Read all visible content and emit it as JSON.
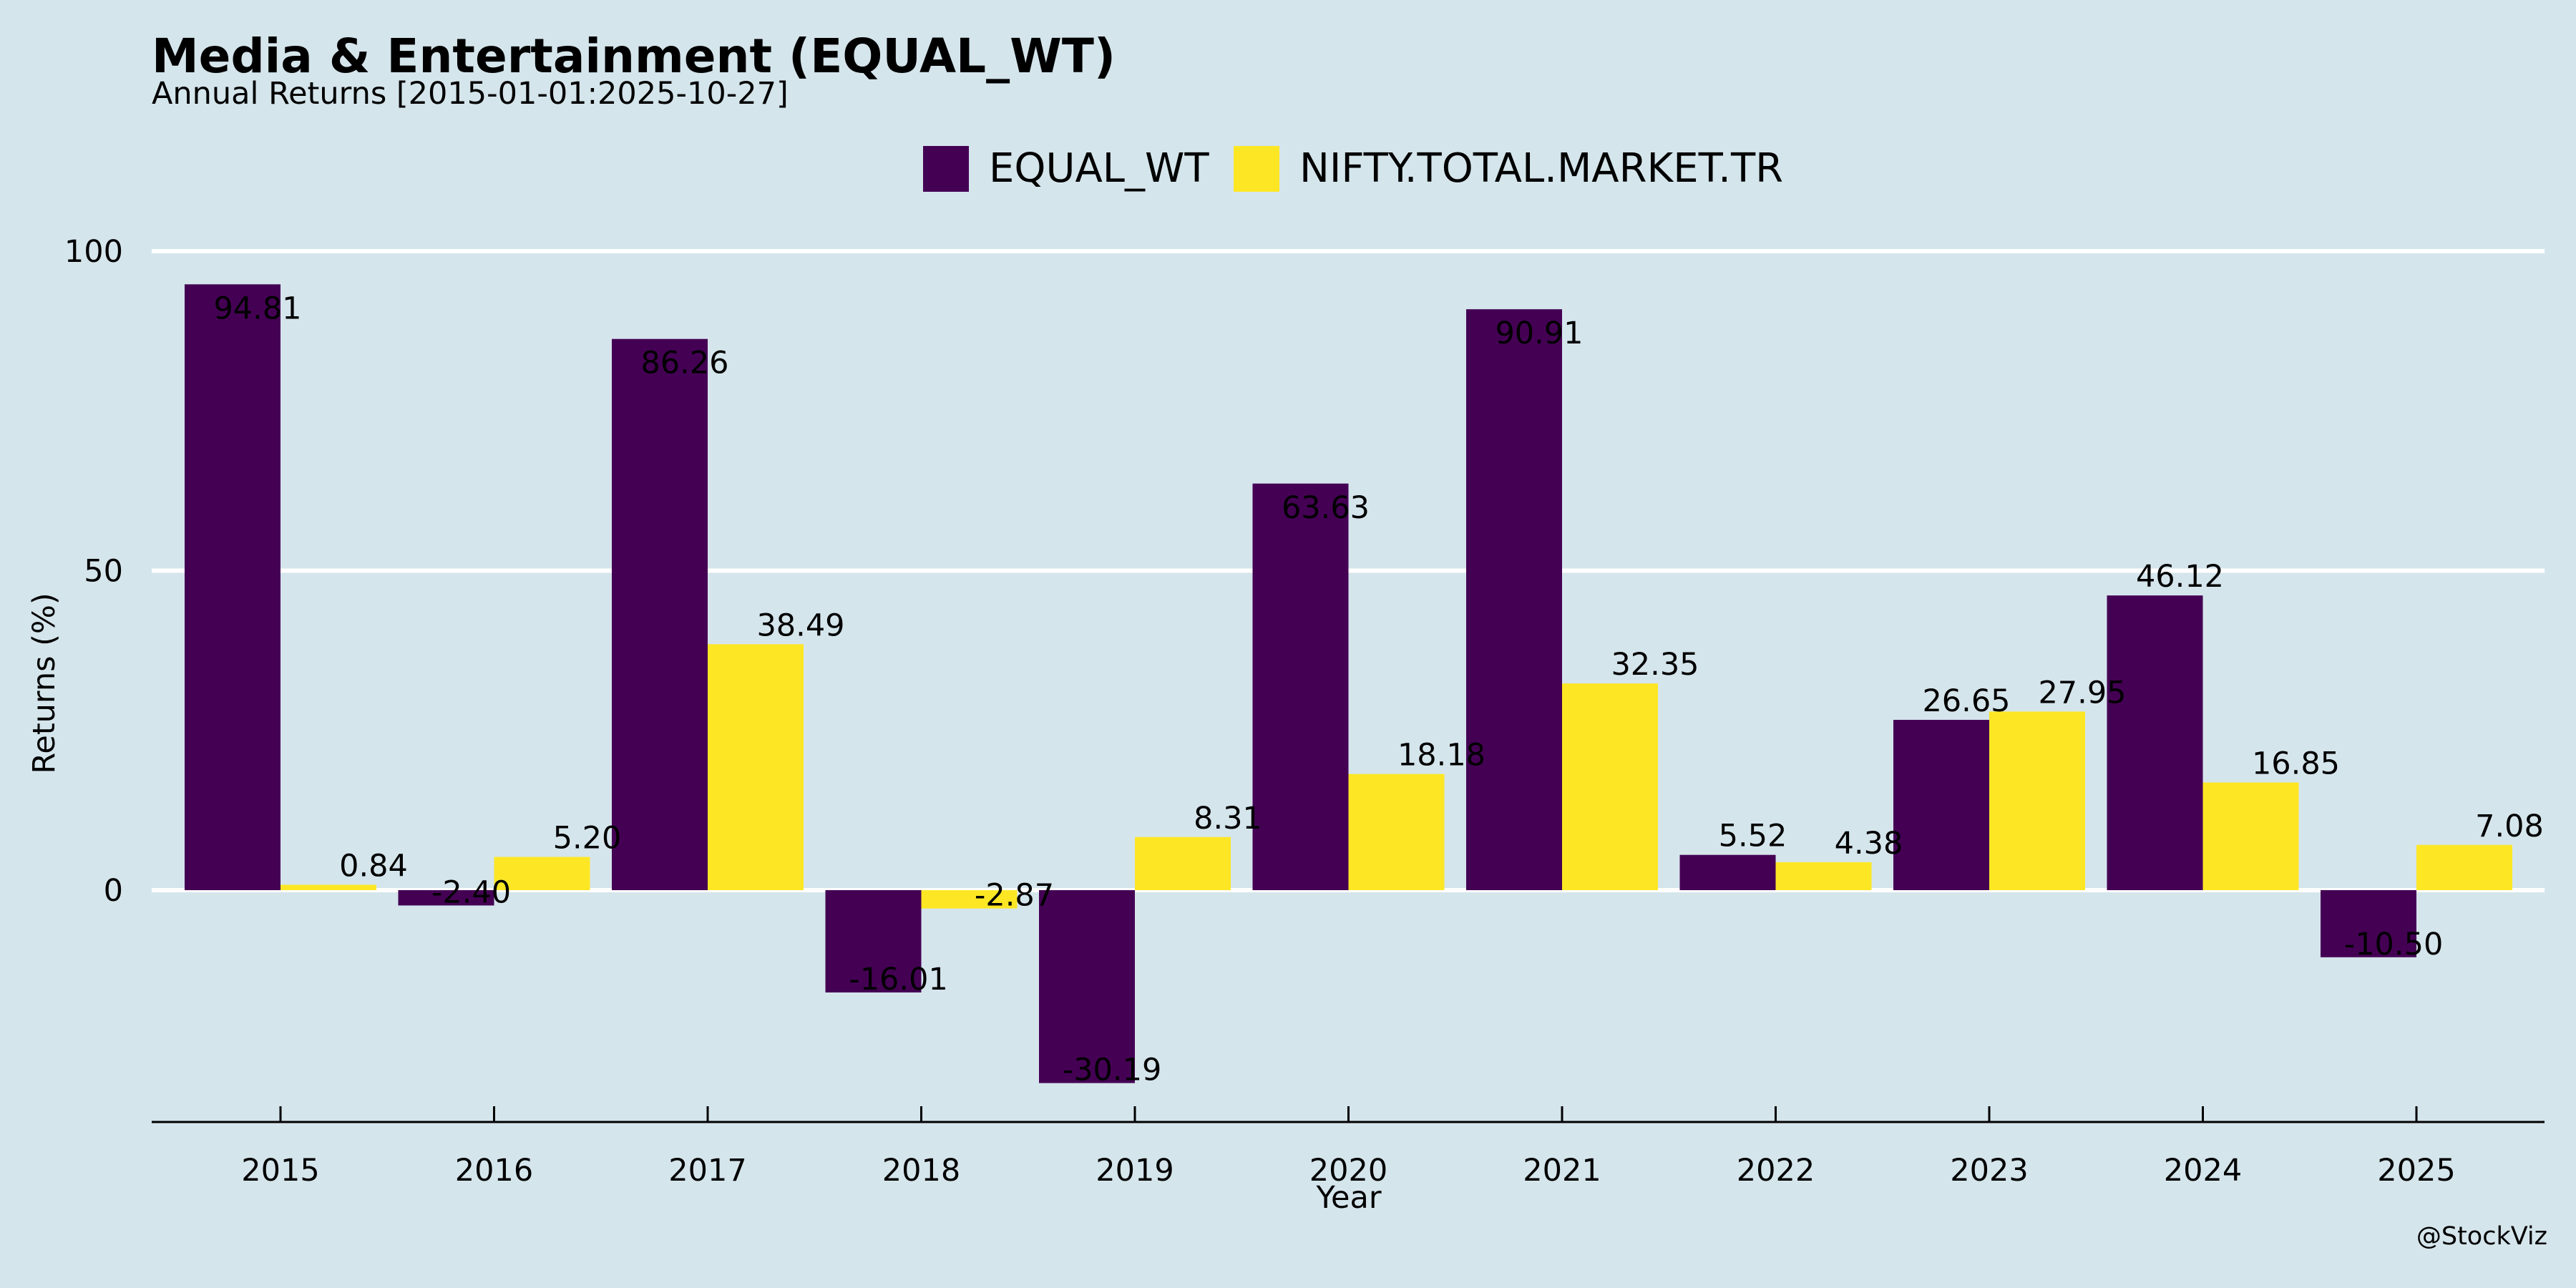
{
  "chart_data": {
    "type": "bar",
    "title": "Media & Entertainment (EQUAL_WT)",
    "subtitle": "Annual Returns [2015-01-01:2025-10-27]",
    "xlabel": "Year",
    "ylabel": "Returns (%)",
    "ylim": [
      -36.5,
      100
    ],
    "yticks": [
      0,
      50,
      100
    ],
    "ytick_labels": [
      "0",
      "50",
      "100"
    ],
    "grid": true,
    "legend_position": "top-center",
    "categories": [
      "2015",
      "2016",
      "2017",
      "2018",
      "2019",
      "2020",
      "2021",
      "2022",
      "2023",
      "2024",
      "2025"
    ],
    "series": [
      {
        "name": "EQUAL_WT",
        "color": "#440154",
        "values": [
          94.81,
          -2.4,
          86.26,
          -16.01,
          -30.19,
          63.63,
          90.91,
          5.52,
          26.65,
          46.12,
          -10.5
        ],
        "labels": [
          "94.81",
          "-2.40",
          "86.26",
          "-16.01",
          "-30.19",
          "63.63",
          "90.91",
          "5.52",
          "26.65",
          "46.12",
          "-10.50"
        ]
      },
      {
        "name": "NIFTY.TOTAL.MARKET.TR",
        "color": "#fde725",
        "values": [
          0.84,
          5.2,
          38.49,
          -2.87,
          8.31,
          18.18,
          32.35,
          4.38,
          27.95,
          16.85,
          7.08
        ],
        "labels": [
          "0.84",
          "5.20",
          "38.49",
          "-2.87",
          "8.31",
          "18.18",
          "32.35",
          "4.38",
          "27.95",
          "16.85",
          "7.08"
        ]
      }
    ]
  },
  "watermark": "@StockViz",
  "colors": {
    "background": "#d5e5ec",
    "grid": "#ffffff",
    "axis": "#000000"
  }
}
